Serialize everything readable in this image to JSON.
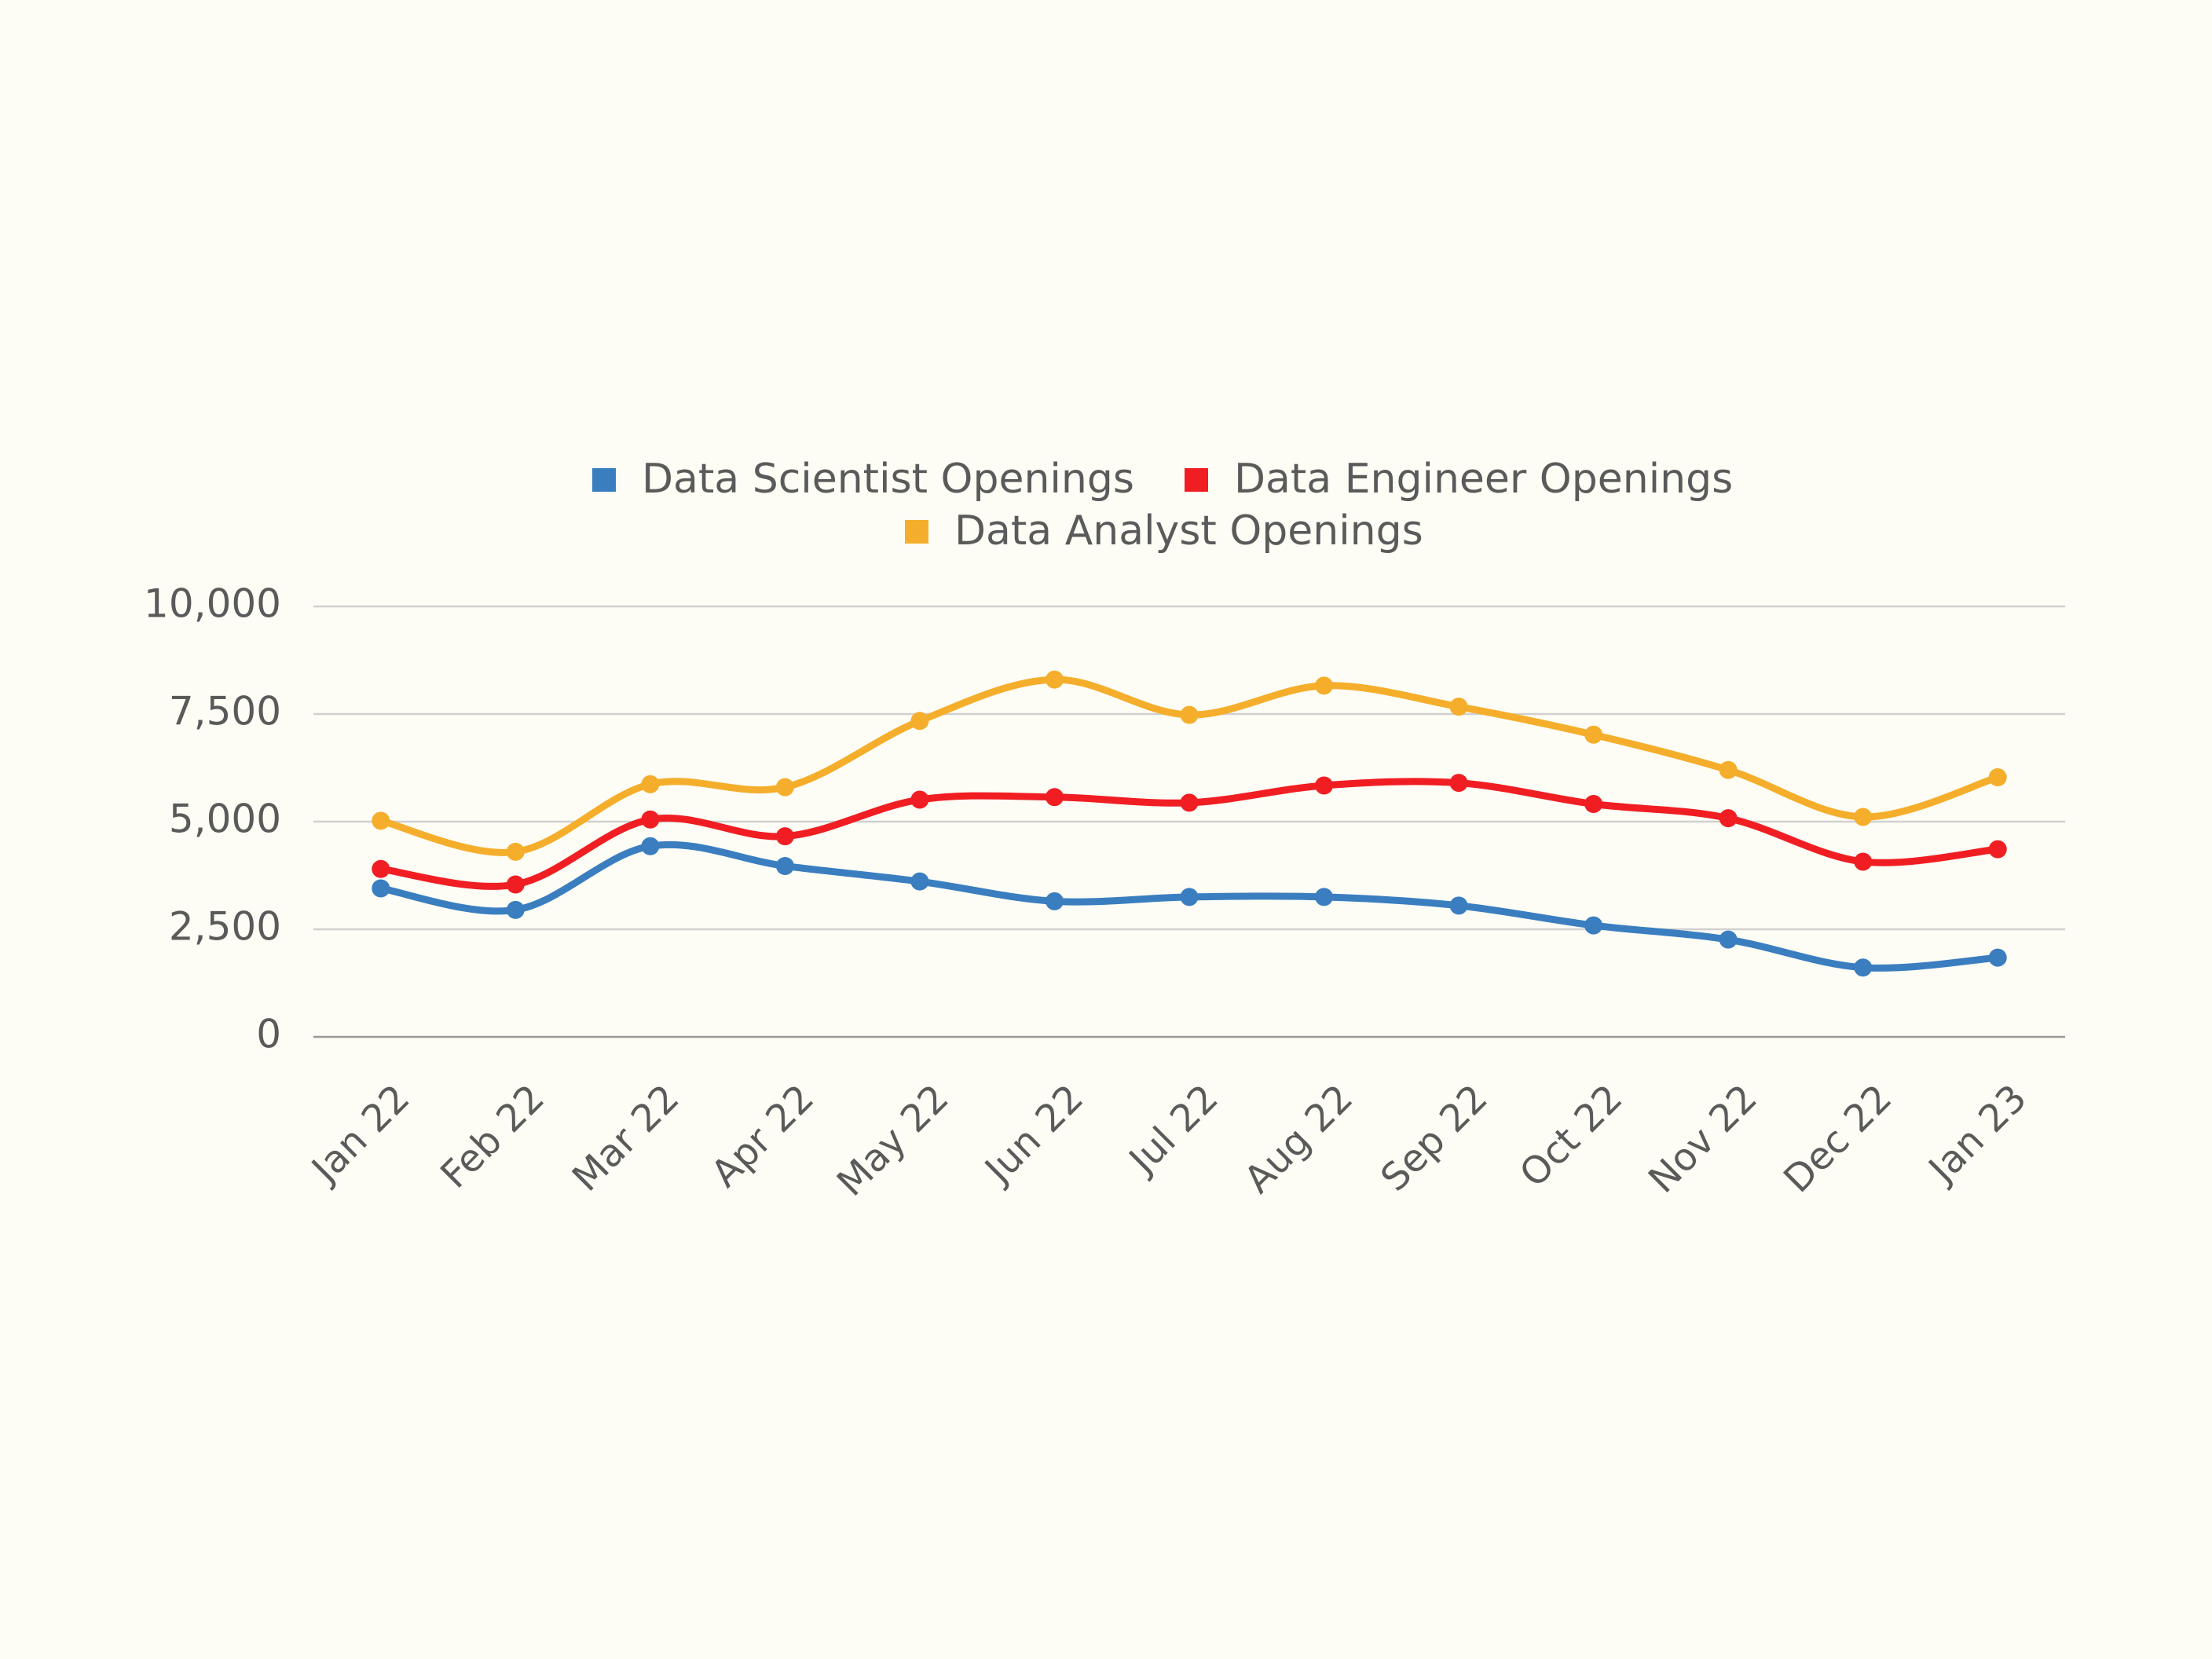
{
  "chart_data": {
    "type": "line",
    "categories": [
      "Jan 22",
      "Feb 22",
      "Mar 22",
      "Apr 22",
      "May 22",
      "Jun 22",
      "Jul 22",
      "Aug 22",
      "Sep 22",
      "Oct 22",
      "Nov 22",
      "Dec 22",
      "Jan 23"
    ],
    "series": [
      {
        "name": "Data Scientist Openings",
        "color": "#3a7ec0",
        "values": [
          3450,
          2950,
          4430,
          3970,
          3610,
          3150,
          3250,
          3250,
          3050,
          2590,
          2260,
          1610,
          1840
        ]
      },
      {
        "name": "Data Engineer Openings",
        "color": "#f01e23",
        "values": [
          3900,
          3540,
          5050,
          4660,
          5510,
          5570,
          5440,
          5840,
          5900,
          5410,
          5080,
          4070,
          4360
        ]
      },
      {
        "name": "Data Analyst Openings",
        "color": "#f5ae2c",
        "values": [
          5020,
          4300,
          5870,
          5800,
          7340,
          8300,
          7480,
          8160,
          7670,
          7020,
          6200,
          5110,
          6030
        ]
      }
    ],
    "ylim": [
      0,
      10000
    ],
    "yticks": [
      0,
      {
        "value": 2500,
        "label": "2,500"
      },
      {
        "value": 5000,
        "label": "5,000"
      },
      {
        "value": 7500,
        "label": "7,500"
      },
      {
        "value": 10000,
        "label": "10,000"
      }
    ],
    "grid": true,
    "smooth": true,
    "markers": true,
    "legend": "top"
  }
}
